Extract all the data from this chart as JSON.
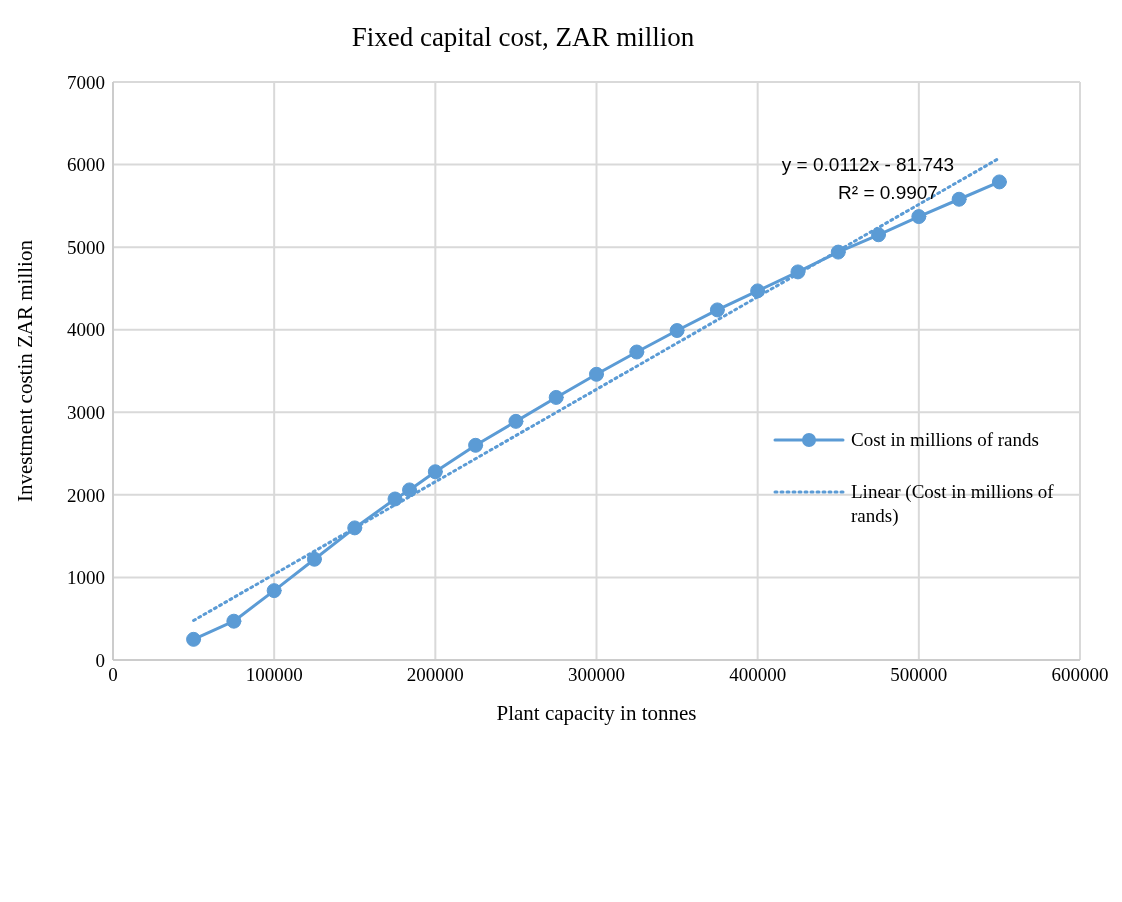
{
  "chart_data": {
    "type": "line",
    "title": "Fixed capital cost, ZAR million",
    "xlabel": "Plant capacity in tonnes",
    "ylabel": "Investment costin ZAR million",
    "xlim": [
      0,
      600000
    ],
    "xticks": [
      0,
      100000,
      200000,
      300000,
      400000,
      500000,
      600000
    ],
    "ylim": [
      0,
      7000
    ],
    "yticks": [
      0,
      1000,
      2000,
      3000,
      4000,
      5000,
      6000,
      7000
    ],
    "grid": true,
    "legend": "right",
    "annotations": [
      "y = 0.0112x - 81.743",
      "R² = 0.9907"
    ],
    "series": [
      {
        "name": "Cost in millions of rands",
        "color": "#5b9bd5",
        "marker": "circle",
        "line_style": "solid",
        "x": [
          50000,
          75000,
          100000,
          125000,
          150000,
          175000,
          184000,
          200000,
          225000,
          250000,
          275000,
          300000,
          325000,
          350000,
          375000,
          400000,
          425000,
          450000,
          475000,
          500000,
          525000,
          550000
        ],
        "values": [
          250,
          470,
          840,
          1220,
          1600,
          1950,
          2060,
          2280,
          2600,
          2890,
          3180,
          3460,
          3730,
          3990,
          4240,
          4470,
          4700,
          4940,
          5150,
          5370,
          5580,
          5790
        ]
      },
      {
        "name": "Linear (Cost in millions of rands)",
        "type": "line",
        "color": "#5b9bd5",
        "marker": "none",
        "line_style": "dotted",
        "x": [
          50000,
          550000
        ],
        "values": [
          478,
          6078
        ]
      }
    ]
  }
}
